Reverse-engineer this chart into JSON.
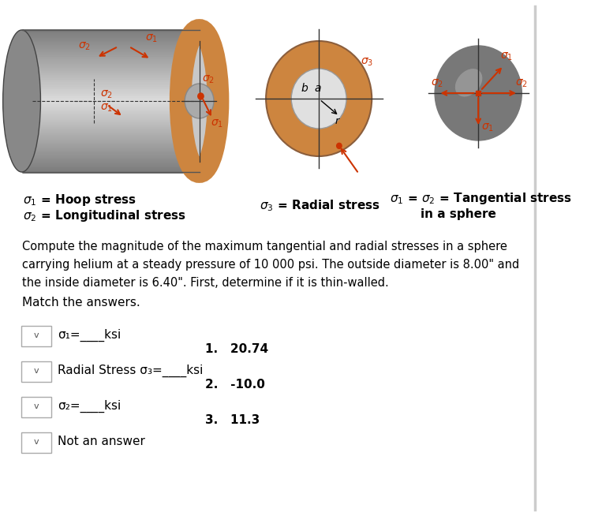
{
  "title": "",
  "background_color": "#ffffff",
  "text_color": "#000000",
  "paragraph": "Compute the magnitude of the maximum tangential and radial stresses in a sphere\ncarrying helium at a steady pressure of 10 000 psi. The outside diameter is 8.00\" and\nthe inside diameter is 6.40\". First, determine if it is thin-walled.",
  "match_text": "Match the answers.",
  "dropdown_labels": [
    "σ₁=____ksi",
    "Radial Stress σ₃=____ksi",
    "σ₂=____ksi",
    "Not an answer"
  ],
  "answers": [
    "1.   20.74",
    "2.   -10.0",
    "3.   11.3"
  ],
  "ring_color": "#cd853f",
  "arrow_color": "#cc3300"
}
